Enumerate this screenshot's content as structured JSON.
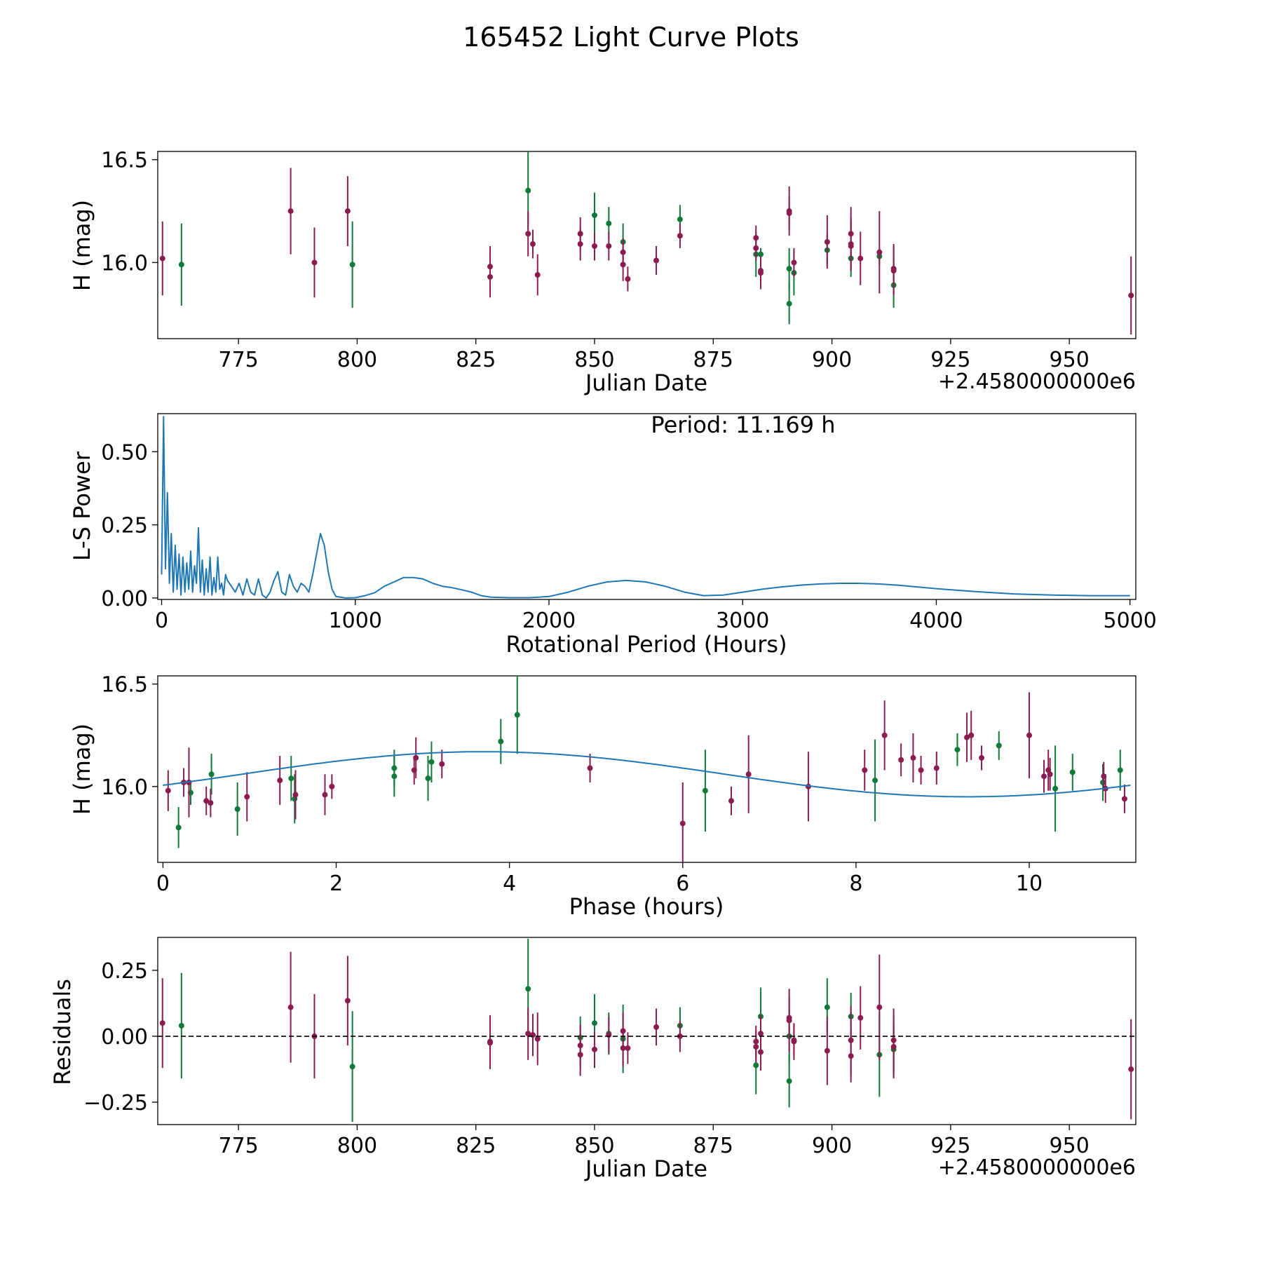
{
  "figure": {
    "title": "165452 Light Curve Plots",
    "colors": {
      "green": "#117a38",
      "purple": "#8b1c52",
      "line": "#1f77b4",
      "axis": "#000000"
    }
  },
  "chart_data": [
    {
      "type": "scatter",
      "id": "lightcurve",
      "xlabel": "Julian Date",
      "ylabel": "H (mag)",
      "x_offset_label": "+2.4580000000e6",
      "xlim": [
        758,
        964
      ],
      "ylim": [
        15.63,
        16.54
      ],
      "xticks": [
        775,
        800,
        825,
        850,
        875,
        900,
        925,
        950
      ],
      "yticks": [
        16.0,
        16.5
      ],
      "ytick_labels": [
        "16.0",
        "16.5"
      ],
      "series": [
        {
          "name": "green",
          "color": "#117a38",
          "points": [
            [
              763,
              15.99,
              0.2
            ],
            [
              799,
              15.99,
              0.21
            ],
            [
              836,
              16.35,
              0.19
            ],
            [
              850,
              16.23,
              0.11
            ],
            [
              853,
              16.19,
              0.08
            ],
            [
              856,
              16.1,
              0.09
            ],
            [
              868,
              16.21,
              0.07
            ],
            [
              884,
              16.04,
              0.11
            ],
            [
              885,
              16.04,
              0.03
            ],
            [
              891,
              15.97,
              0.1
            ],
            [
              891,
              15.8,
              0.1
            ],
            [
              892,
              15.95,
              0.11
            ],
            [
              899,
              16.06,
              0.08
            ],
            [
              904,
              16.02,
              0.09
            ],
            [
              910,
              16.03,
              0.04
            ],
            [
              913,
              15.89,
              0.11
            ]
          ]
        },
        {
          "name": "purple",
          "color": "#8b1c52",
          "points": [
            [
              759,
              16.02,
              0.18
            ],
            [
              786,
              16.25,
              0.21
            ],
            [
              791,
              16.0,
              0.17
            ],
            [
              798,
              16.25,
              0.17
            ],
            [
              828,
              15.98,
              0.1
            ],
            [
              828,
              15.93,
              0.1
            ],
            [
              836,
              16.14,
              0.11
            ],
            [
              837,
              16.09,
              0.07
            ],
            [
              838,
              15.94,
              0.1
            ],
            [
              847,
              16.14,
              0.08
            ],
            [
              847,
              16.09,
              0.08
            ],
            [
              850,
              16.08,
              0.07
            ],
            [
              853,
              16.08,
              0.07
            ],
            [
              856,
              16.05,
              0.07
            ],
            [
              856,
              15.99,
              0.08
            ],
            [
              857,
              15.92,
              0.06
            ],
            [
              863,
              16.01,
              0.07
            ],
            [
              868,
              16.13,
              0.06
            ],
            [
              884,
              16.12,
              0.06
            ],
            [
              884,
              16.07,
              0.06
            ],
            [
              885,
              15.95,
              0.08
            ],
            [
              885,
              15.96,
              0.07
            ],
            [
              891,
              16.25,
              0.12
            ],
            [
              891,
              16.24,
              0.08
            ],
            [
              892,
              16.0,
              0.07
            ],
            [
              899,
              16.1,
              0.13
            ],
            [
              904,
              16.14,
              0.13
            ],
            [
              904,
              16.09,
              0.13
            ],
            [
              904,
              16.08,
              0.12
            ],
            [
              906,
              16.02,
              0.13
            ],
            [
              910,
              16.05,
              0.2
            ],
            [
              913,
              15.97,
              0.12
            ],
            [
              913,
              15.96,
              0.12
            ],
            [
              963,
              15.84,
              0.19
            ]
          ]
        }
      ]
    },
    {
      "type": "line",
      "id": "periodogram",
      "xlabel": "Rotational Period (Hours)",
      "ylabel": "L-S Power",
      "annotation": "Period: 11.169 h",
      "xlim": [
        -20,
        5030
      ],
      "ylim": [
        -0.005,
        0.63
      ],
      "xticks": [
        0,
        1000,
        2000,
        3000,
        4000,
        5000
      ],
      "yticks": [
        0.0,
        0.25,
        0.5
      ],
      "ytick_labels": [
        "0.00",
        "0.25",
        "0.50"
      ],
      "color": "#1f77b4",
      "x": [
        0,
        10,
        20,
        30,
        40,
        50,
        60,
        70,
        80,
        90,
        100,
        110,
        120,
        130,
        140,
        150,
        160,
        170,
        180,
        190,
        200,
        210,
        220,
        230,
        240,
        250,
        260,
        270,
        280,
        290,
        300,
        310,
        320,
        330,
        340,
        360,
        380,
        400,
        420,
        440,
        460,
        480,
        500,
        520,
        540,
        560,
        580,
        600,
        620,
        640,
        660,
        680,
        700,
        720,
        740,
        760,
        780,
        800,
        820,
        840,
        860,
        880,
        900,
        950,
        1000,
        1050,
        1100,
        1150,
        1200,
        1250,
        1300,
        1350,
        1400,
        1450,
        1500,
        1550,
        1600,
        1650,
        1700,
        1800,
        1900,
        2000,
        2100,
        2200,
        2300,
        2400,
        2500,
        2600,
        2700,
        2800,
        2900,
        3000,
        3100,
        3200,
        3300,
        3400,
        3500,
        3600,
        3700,
        3800,
        3900,
        4000,
        4200,
        4400,
        4600,
        4800,
        5000
      ],
      "y": [
        0.08,
        0.62,
        0.1,
        0.36,
        0.05,
        0.22,
        0.02,
        0.18,
        0.03,
        0.15,
        0.01,
        0.14,
        0.02,
        0.12,
        0.03,
        0.16,
        0.02,
        0.11,
        0.05,
        0.24,
        0.02,
        0.13,
        0.01,
        0.1,
        0.02,
        0.14,
        0.01,
        0.07,
        0.02,
        0.14,
        0.03,
        0.05,
        0.01,
        0.08,
        0.06,
        0.04,
        0.02,
        0.05,
        0.01,
        0.065,
        0.02,
        0.01,
        0.065,
        0.01,
        0.0,
        0.02,
        0.06,
        0.09,
        0.02,
        0.01,
        0.08,
        0.04,
        0.02,
        0.05,
        0.04,
        0.02,
        0.08,
        0.15,
        0.22,
        0.18,
        0.09,
        0.03,
        0.005,
        0.0,
        0.001,
        0.008,
        0.018,
        0.04,
        0.055,
        0.07,
        0.07,
        0.065,
        0.05,
        0.04,
        0.035,
        0.028,
        0.02,
        0.008,
        0.003,
        0.001,
        0.001,
        0.005,
        0.02,
        0.04,
        0.055,
        0.06,
        0.055,
        0.04,
        0.02,
        0.008,
        0.01,
        0.02,
        0.03,
        0.038,
        0.044,
        0.048,
        0.05,
        0.05,
        0.048,
        0.044,
        0.038,
        0.032,
        0.022,
        0.014,
        0.01,
        0.008,
        0.008
      ]
    },
    {
      "type": "scatter",
      "id": "phased",
      "xlabel": "Phase (hours)",
      "ylabel": "H (mag)",
      "xlim": [
        -0.06,
        11.23
      ],
      "ylim": [
        15.63,
        16.54
      ],
      "xticks": [
        0,
        2,
        4,
        6,
        8,
        10
      ],
      "yticks": [
        16.0,
        16.5
      ],
      "ytick_labels": [
        "16.0",
        "16.5"
      ],
      "fit": {
        "period_hours": 11.169,
        "mean": 16.06,
        "amplitude": 0.11,
        "peak_phase_hours": 3.7,
        "color": "#1f77b4"
      },
      "series": [
        {
          "name": "green",
          "color": "#117a38",
          "points": [
            [
              0.18,
              15.8,
              0.1
            ],
            [
              0.32,
              15.97,
              0.06
            ],
            [
              0.56,
              16.06,
              0.1
            ],
            [
              0.86,
              15.89,
              0.13
            ],
            [
              1.48,
              16.04,
              0.11
            ],
            [
              1.52,
              15.94,
              0.12
            ],
            [
              2.67,
              16.09,
              0.09
            ],
            [
              2.67,
              16.05,
              0.1
            ],
            [
              3.06,
              16.04,
              0.11
            ],
            [
              3.1,
              16.12,
              0.1
            ],
            [
              3.9,
              16.22,
              0.11
            ],
            [
              4.09,
              16.35,
              0.19
            ],
            [
              6.26,
              15.98,
              0.2
            ],
            [
              8.22,
              16.03,
              0.2
            ],
            [
              9.17,
              16.18,
              0.08
            ],
            [
              9.65,
              16.2,
              0.07
            ],
            [
              10.3,
              15.99,
              0.21
            ],
            [
              10.5,
              16.07,
              0.09
            ],
            [
              10.85,
              16.02,
              0.09
            ],
            [
              11.05,
              16.08,
              0.1
            ]
          ]
        },
        {
          "name": "purple",
          "color": "#8b1c52",
          "points": [
            [
              0.06,
              15.98,
              0.1
            ],
            [
              0.24,
              16.02,
              0.07
            ],
            [
              0.3,
              16.02,
              0.17
            ],
            [
              0.5,
              15.93,
              0.07
            ],
            [
              0.55,
              15.92,
              0.07
            ],
            [
              0.97,
              15.95,
              0.12
            ],
            [
              1.35,
              16.03,
              0.12
            ],
            [
              1.53,
              15.96,
              0.12
            ],
            [
              1.87,
              15.96,
              0.1
            ],
            [
              1.95,
              16.0,
              0.06
            ],
            [
              2.9,
              16.08,
              0.07
            ],
            [
              2.92,
              16.14,
              0.1
            ],
            [
              3.22,
              16.11,
              0.07
            ],
            [
              4.93,
              16.09,
              0.07
            ],
            [
              6.0,
              15.82,
              0.2
            ],
            [
              6.56,
              15.93,
              0.07
            ],
            [
              6.76,
              16.06,
              0.19
            ],
            [
              7.45,
              16.0,
              0.17
            ],
            [
              8.1,
              16.08,
              0.1
            ],
            [
              8.33,
              16.25,
              0.17
            ],
            [
              8.52,
              16.13,
              0.08
            ],
            [
              8.66,
              16.14,
              0.12
            ],
            [
              8.75,
              16.08,
              0.07
            ],
            [
              8.93,
              16.09,
              0.08
            ],
            [
              9.28,
              16.24,
              0.12
            ],
            [
              9.33,
              16.25,
              0.12
            ],
            [
              9.45,
              16.14,
              0.06
            ],
            [
              10.0,
              16.25,
              0.21
            ],
            [
              10.17,
              16.05,
              0.08
            ],
            [
              10.22,
              16.08,
              0.1
            ],
            [
              10.24,
              16.06,
              0.08
            ],
            [
              10.86,
              16.05,
              0.07
            ],
            [
              10.88,
              15.99,
              0.07
            ],
            [
              11.1,
              15.94,
              0.07
            ]
          ]
        }
      ]
    },
    {
      "type": "scatter",
      "id": "residuals",
      "xlabel": "Julian Date",
      "ylabel": "Residuals",
      "x_offset_label": "+2.4580000000e6",
      "xlim": [
        758,
        964
      ],
      "ylim": [
        -0.335,
        0.375
      ],
      "xticks": [
        775,
        800,
        825,
        850,
        875,
        900,
        925,
        950
      ],
      "yticks": [
        -0.25,
        0.0,
        0.25
      ],
      "ytick_labels": [
        "−0.25",
        "0.00",
        "0.25"
      ],
      "zero_line": true,
      "series": [
        {
          "name": "green",
          "color": "#117a38",
          "points": [
            [
              763,
              0.04,
              0.2
            ],
            [
              799,
              -0.115,
              0.21
            ],
            [
              836,
              0.18,
              0.19
            ],
            [
              847,
              -0.005,
              0.08
            ],
            [
              850,
              0.05,
              0.11
            ],
            [
              853,
              0.01,
              0.08
            ],
            [
              856,
              -0.01,
              0.13
            ],
            [
              868,
              0.04,
              0.07
            ],
            [
              884,
              -0.11,
              0.11
            ],
            [
              885,
              0.075,
              0.11
            ],
            [
              891,
              -0.17,
              0.1
            ],
            [
              891,
              0.0,
              0.1
            ],
            [
              899,
              0.11,
              0.11
            ],
            [
              904,
              0.075,
              0.09
            ],
            [
              910,
              -0.07,
              0.16
            ],
            [
              913,
              -0.05,
              0.1
            ]
          ]
        },
        {
          "name": "purple",
          "color": "#8b1c52",
          "points": [
            [
              759,
              0.05,
              0.17
            ],
            [
              786,
              0.11,
              0.21
            ],
            [
              791,
              0.0,
              0.16
            ],
            [
              798,
              0.135,
              0.17
            ],
            [
              828,
              -0.02,
              0.1
            ],
            [
              828,
              -0.025,
              0.1
            ],
            [
              836,
              0.01,
              0.1
            ],
            [
              837,
              0.005,
              0.08
            ],
            [
              838,
              -0.01,
              0.1
            ],
            [
              847,
              -0.035,
              0.08
            ],
            [
              847,
              -0.07,
              0.08
            ],
            [
              850,
              -0.05,
              0.07
            ],
            [
              853,
              0.005,
              0.07
            ],
            [
              856,
              -0.045,
              0.07
            ],
            [
              856,
              0.02,
              0.07
            ],
            [
              857,
              -0.045,
              0.06
            ],
            [
              863,
              0.035,
              0.07
            ],
            [
              868,
              0.0,
              0.06
            ],
            [
              884,
              -0.02,
              0.06
            ],
            [
              884,
              -0.04,
              0.06
            ],
            [
              885,
              -0.06,
              0.07
            ],
            [
              885,
              0.01,
              0.07
            ],
            [
              891,
              0.06,
              0.12
            ],
            [
              891,
              0.07,
              0.08
            ],
            [
              892,
              -0.02,
              0.07
            ],
            [
              892,
              -0.015,
              0.06
            ],
            [
              899,
              -0.055,
              0.13
            ],
            [
              904,
              -0.015,
              0.13
            ],
            [
              904,
              -0.075,
              0.1
            ],
            [
              906,
              0.07,
              0.12
            ],
            [
              910,
              0.11,
              0.2
            ],
            [
              913,
              -0.015,
              0.12
            ],
            [
              913,
              -0.04,
              0.12
            ],
            [
              963,
              -0.125,
              0.19
            ]
          ]
        }
      ]
    }
  ]
}
